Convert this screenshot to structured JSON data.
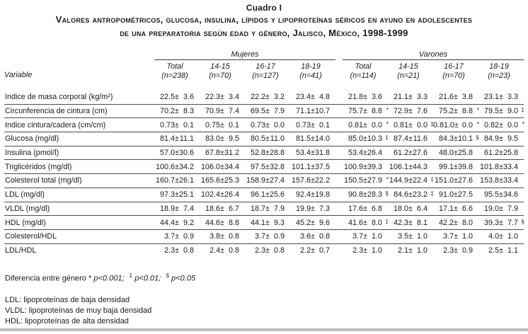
{
  "page": {
    "table_number": "Cuadro I",
    "title_line1": "Valores antropométricos, glucosa, insulina, lípidos y lipoproteínas séricos en ayuno en adolescentes",
    "title_line2": "de una preparatoria según edad y género, Jalisco, México, 1998-1999"
  },
  "table": {
    "type": "table",
    "variable_header": "Variable",
    "groups": [
      {
        "name": "Mujeres",
        "columns": [
          {
            "age": "Total",
            "n": "(n=238)"
          },
          {
            "age": "14-15",
            "n": "(n=70)"
          },
          {
            "age": "16-17",
            "n": "(n=127)"
          },
          {
            "age": "18-19",
            "n": "(n=41)"
          }
        ]
      },
      {
        "name": "Varones",
        "columns": [
          {
            "age": "Total",
            "n": "(n=114)"
          },
          {
            "age": "14-15",
            "n": "(n=21)"
          },
          {
            "age": "16-17",
            "n": "(n=70)"
          },
          {
            "age": "18-19",
            "n": "(n=23)"
          }
        ]
      }
    ],
    "rows": [
      {
        "label": "Indice de masa corporal (kg/m²)",
        "cells": [
          {
            "m": "22.5",
            "s": "3.6",
            "sup": ""
          },
          {
            "m": "22.3",
            "s": "3.4",
            "sup": ""
          },
          {
            "m": "22.2",
            "s": "3.2",
            "sup": ""
          },
          {
            "m": "23.4",
            "s": "4.8",
            "sup": ""
          },
          {
            "m": "21.8",
            "s": "3.6",
            "sup": ""
          },
          {
            "m": "21.1",
            "s": "3.3",
            "sup": ""
          },
          {
            "m": "21.6",
            "s": "3.8",
            "sup": ""
          },
          {
            "m": "23.1",
            "s": "3.3",
            "sup": ""
          }
        ]
      },
      {
        "label": "Circunferencia de cintura (cm)",
        "cells": [
          {
            "m": "70.2",
            "s": "8.3",
            "sup": ""
          },
          {
            "m": "70.9",
            "s": "7.4",
            "sup": ""
          },
          {
            "m": "69.5",
            "s": "7.9",
            "sup": ""
          },
          {
            "m": "71.1",
            "s": "10.7",
            "sup": ""
          },
          {
            "m": "75.7",
            "s": "8.8",
            "sup": "*"
          },
          {
            "m": "72.9",
            "s": "7.6",
            "sup": ""
          },
          {
            "m": "75.2",
            "s": "8.8",
            "sup": "*"
          },
          {
            "m": "79.5",
            "s": "9.0",
            "sup": "‡"
          }
        ]
      },
      {
        "label": "Indice cintura/cadera (cm/cm)",
        "cells": [
          {
            "m": "0.73",
            "s": "0.1",
            "sup": ""
          },
          {
            "m": "0.75",
            "s": "0.1",
            "sup": ""
          },
          {
            "m": "0.73",
            "s": "0.0",
            "sup": ""
          },
          {
            "m": "0.73",
            "s": "0.1",
            "sup": ""
          },
          {
            "m": "0.81",
            "s": "0.0",
            "sup": "*"
          },
          {
            "m": "0.81",
            "s": "0.0",
            "sup": "‡"
          },
          {
            "m": "0.81.0",
            "s": "0.0",
            "sup": "*"
          },
          {
            "m": "0.82",
            "s": "0.0",
            "sup": "*"
          }
        ]
      },
      {
        "label": "Glucosa (mg/dl)",
        "cells": [
          {
            "m": "81.4",
            "s": "11.1",
            "sup": ""
          },
          {
            "m": "83.0",
            "s": "9.5",
            "sup": ""
          },
          {
            "m": "80.5",
            "s": "11.0",
            "sup": ""
          },
          {
            "m": "81.5",
            "s": "14.0",
            "sup": ""
          },
          {
            "m": "85.0",
            "s": "10.3",
            "sup": "‡"
          },
          {
            "m": "87.4",
            "s": "11.6",
            "sup": ""
          },
          {
            "m": "84.3",
            "s": "10.1",
            "sup": "§"
          },
          {
            "m": "84.9",
            "s": "9.5",
            "sup": ""
          }
        ]
      },
      {
        "label": "Insulina (pmol/l)",
        "cells": [
          {
            "m": "57.0",
            "s": "30.6",
            "sup": ""
          },
          {
            "m": "67.8",
            "s": "31.2",
            "sup": ""
          },
          {
            "m": "52.8",
            "s": "28.8",
            "sup": ""
          },
          {
            "m": "53.4",
            "s": "31.8",
            "sup": ""
          },
          {
            "m": "53.4",
            "s": "26.4",
            "sup": ""
          },
          {
            "m": "61.2",
            "s": "27.6",
            "sup": ""
          },
          {
            "m": "48.0",
            "s": "25.8",
            "sup": ""
          },
          {
            "m": "61.2",
            "s": "25.8",
            "sup": ""
          }
        ]
      },
      {
        "label": "Triglicéridos (mg/dl)",
        "cells": [
          {
            "m": "100.6",
            "s": "34.2",
            "sup": ""
          },
          {
            "m": "106.0",
            "s": "34.4",
            "sup": ""
          },
          {
            "m": "97.5",
            "s": "32.8",
            "sup": ""
          },
          {
            "m": "101.1",
            "s": "37.5",
            "sup": ""
          },
          {
            "m": "100.9",
            "s": "39.3",
            "sup": ""
          },
          {
            "m": "106.1",
            "s": "44.3",
            "sup": ""
          },
          {
            "m": "99.1",
            "s": "39.8",
            "sup": ""
          },
          {
            "m": "101.8",
            "s": "33.4",
            "sup": ""
          }
        ]
      },
      {
        "label": "Colesterol total (mg/dl)",
        "cells": [
          {
            "m": "160.7",
            "s": "26.1",
            "sup": ""
          },
          {
            "m": "165.6",
            "s": "25.3",
            "sup": ""
          },
          {
            "m": "158.9",
            "s": "27.4",
            "sup": ""
          },
          {
            "m": "157.6",
            "s": "22.2",
            "sup": ""
          },
          {
            "m": "150.5",
            "s": "27.9",
            "sup": "*"
          },
          {
            "m": "144.9",
            "s": "22.4",
            "sup": "‡"
          },
          {
            "m": "151.0",
            "s": "27.6",
            "sup": ""
          },
          {
            "m": "153.8",
            "s": "33.4",
            "sup": ""
          }
        ]
      },
      {
        "label": "LDL (mg/dl)",
        "cells": [
          {
            "m": "97.3",
            "s": "25.1",
            "sup": ""
          },
          {
            "m": "102.4",
            "s": "26.4",
            "sup": ""
          },
          {
            "m": "96.1",
            "s": "25.6",
            "sup": ""
          },
          {
            "m": "92.4",
            "s": "19.8",
            "sup": ""
          },
          {
            "m": "90.8",
            "s": "28.3",
            "sup": "§"
          },
          {
            "m": "84.6",
            "s": "23.2",
            "sup": "‡"
          },
          {
            "m": "91.0",
            "s": "27.5",
            "sup": ""
          },
          {
            "m": "95.5",
            "s": "34.6",
            "sup": ""
          }
        ]
      },
      {
        "label": "VLDL (mg/dl)",
        "cells": [
          {
            "m": "18.9",
            "s": "7.4",
            "sup": ""
          },
          {
            "m": "18.6",
            "s": "6.7",
            "sup": ""
          },
          {
            "m": "18.7",
            "s": "7.9",
            "sup": ""
          },
          {
            "m": "19.9",
            "s": "7.3",
            "sup": ""
          },
          {
            "m": "17.6",
            "s": "6.8",
            "sup": ""
          },
          {
            "m": "18.0",
            "s": "6.4",
            "sup": ""
          },
          {
            "m": "17.1",
            "s": "6.6",
            "sup": ""
          },
          {
            "m": "19.0",
            "s": "7.9",
            "sup": ""
          }
        ]
      },
      {
        "label": "HDL (mg/dl)",
        "cells": [
          {
            "m": "44.4",
            "s": "9.2",
            "sup": ""
          },
          {
            "m": "44.6",
            "s": "8.8",
            "sup": ""
          },
          {
            "m": "44.1",
            "s": "9.3",
            "sup": ""
          },
          {
            "m": "45.2",
            "s": "9.6",
            "sup": ""
          },
          {
            "m": "41.6",
            "s": "8.0",
            "sup": "‡"
          },
          {
            "m": "42.3",
            "s": "8.1",
            "sup": ""
          },
          {
            "m": "42.2",
            "s": "8.0",
            "sup": ""
          },
          {
            "m": "39.3",
            "s": "7.7",
            "sup": "§"
          }
        ]
      },
      {
        "label": "Colesterol/HDL",
        "cells": [
          {
            "m": "3.7",
            "s": "0.9",
            "sup": ""
          },
          {
            "m": "3.8",
            "s": "0.8",
            "sup": ""
          },
          {
            "m": "3.7",
            "s": "0.9",
            "sup": ""
          },
          {
            "m": "3.6",
            "s": "0.8",
            "sup": ""
          },
          {
            "m": "3.7",
            "s": "1.0",
            "sup": ""
          },
          {
            "m": "3.5",
            "s": "1.0",
            "sup": ""
          },
          {
            "m": "3.7",
            "s": "1.0",
            "sup": ""
          },
          {
            "m": "4.0",
            "s": "1.0",
            "sup": ""
          }
        ]
      },
      {
        "label": "LDL/HDL",
        "cells": [
          {
            "m": "2.3",
            "s": "0.8",
            "sup": ""
          },
          {
            "m": "2.4",
            "s": "0.8",
            "sup": ""
          },
          {
            "m": "2.3",
            "s": "0.8",
            "sup": ""
          },
          {
            "m": "2.2",
            "s": "0.7",
            "sup": ""
          },
          {
            "m": "2.3",
            "s": "1.0",
            "sup": ""
          },
          {
            "m": "2.1",
            "s": "1.0",
            "sup": ""
          },
          {
            "m": "2.3",
            "s": "0.9",
            "sup": ""
          },
          {
            "m": "2.5",
            "s": "1.1",
            "sup": ""
          }
        ]
      }
    ]
  },
  "footnotes": {
    "significance": {
      "lead": "Diferencia entre género",
      "mark1": "*",
      "p1": "p<0.001;",
      "mark2": "‡",
      "p2": "p<0.01;",
      "mark3": "§",
      "p3": "p<0.05"
    },
    "abbreviations": [
      "LDL: lipoproteínas de baja densidad",
      "VLDL: lipoproteínas de muy baja densidad",
      "HDL: lipoproteínas de alta densidad"
    ]
  }
}
